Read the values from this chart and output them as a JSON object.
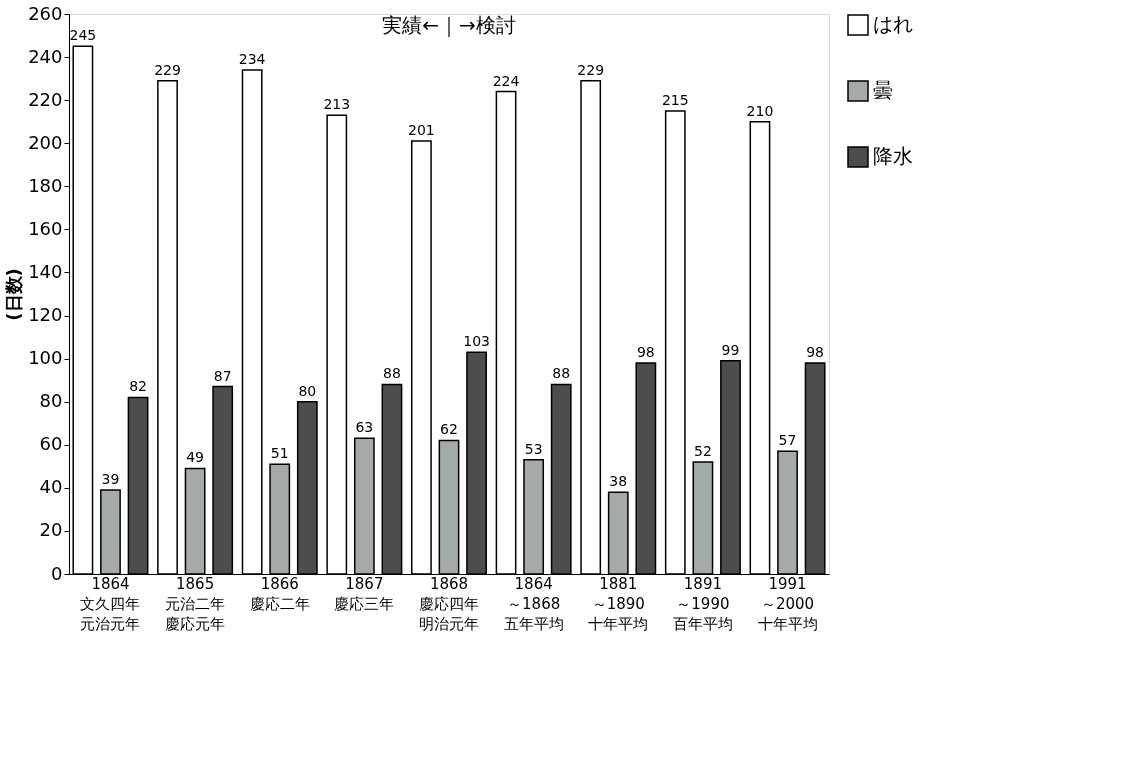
{
  "chart_data": {
    "type": "bar",
    "ylabel": "(日数)",
    "annotations": [
      "実績←｜→検討"
    ],
    "categories": [
      "1864 文久四年元治元年",
      "1865 元治二年慶応元年",
      "1866 慶応二年",
      "1867 慶応三年",
      "1868 慶応四年明治元年",
      "1864～1868 五年平均",
      "1881～1890 十年平均",
      "1891～1990 百年平均",
      "1991～2000 十年平均"
    ],
    "series": [
      {
        "name": "はれ",
        "color": "#ffffff",
        "values": [
          245,
          229,
          234,
          213,
          201,
          224,
          229,
          215,
          210
        ]
      },
      {
        "name": "曇",
        "color": "#a3aaa8",
        "values": [
          39,
          49,
          51,
          63,
          62,
          53,
          38,
          52,
          57
        ]
      },
      {
        "name": "降水",
        "color": "#4d4d4d",
        "values": [
          82,
          87,
          80,
          88,
          103,
          88,
          98,
          99,
          98
        ]
      }
    ],
    "ylim": [
      0,
      260
    ],
    "yticks": [
      0,
      20,
      40,
      60,
      80,
      100,
      120,
      140,
      160,
      180,
      200,
      220,
      240,
      260
    ],
    "data_labels": true,
    "legend": "right",
    "grid": false
  }
}
